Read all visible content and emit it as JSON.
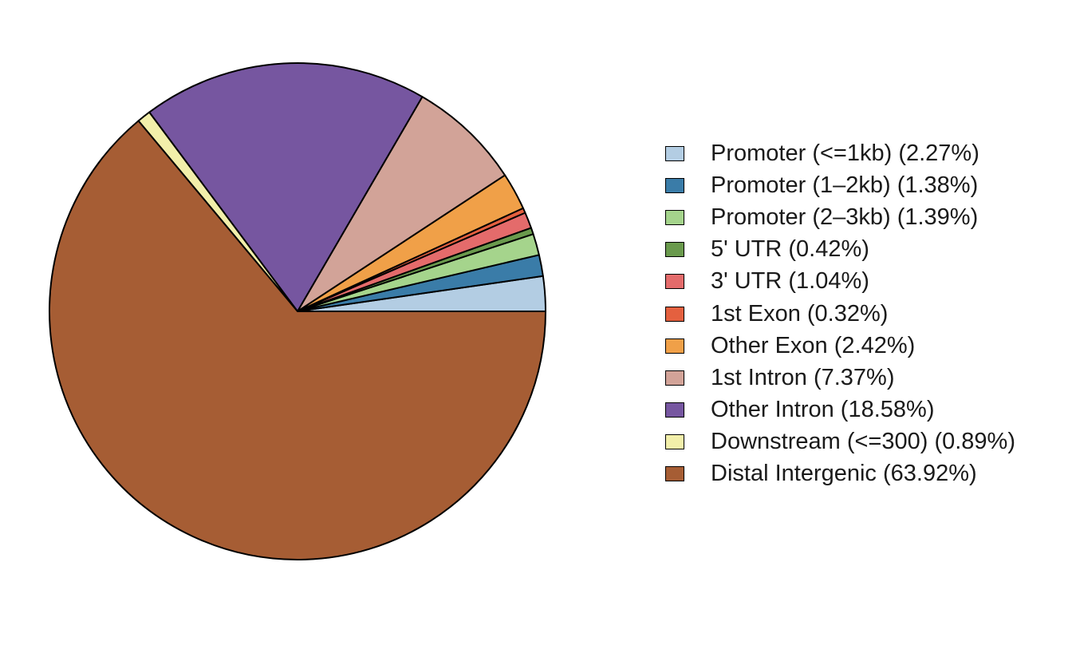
{
  "chart_data": {
    "type": "pie",
    "title": "",
    "start_angle_deg": 0,
    "direction": "counterclockwise",
    "legend_position": "right",
    "slices": [
      {
        "label": "Promoter (<=1kb) (2.27%)",
        "value": 2.27,
        "color": "#b3cde3"
      },
      {
        "label": "Promoter (1–2kb) (1.38%)",
        "value": 1.38,
        "color": "#3a7ca8"
      },
      {
        "label": "Promoter (2–3kb) (1.39%)",
        "value": 1.39,
        "color": "#a5d48c"
      },
      {
        "label": "5' UTR (0.42%)",
        "value": 0.42,
        "color": "#6a9a4d"
      },
      {
        "label": "3' UTR (1.04%)",
        "value": 1.04,
        "color": "#e46b6b"
      },
      {
        "label": "1st Exon (0.32%)",
        "value": 0.32,
        "color": "#e4603f"
      },
      {
        "label": "Other Exon (2.42%)",
        "value": 2.42,
        "color": "#f0a048"
      },
      {
        "label": "1st Intron (7.37%)",
        "value": 7.37,
        "color": "#d2a398"
      },
      {
        "label": "Other Intron (18.58%)",
        "value": 18.58,
        "color": "#7656a0"
      },
      {
        "label": "Downstream (<=300) (0.89%)",
        "value": 0.89,
        "color": "#f2efaa"
      },
      {
        "label": "Distal Intergenic (63.92%)",
        "value": 63.92,
        "color": "#a65d34"
      }
    ]
  }
}
